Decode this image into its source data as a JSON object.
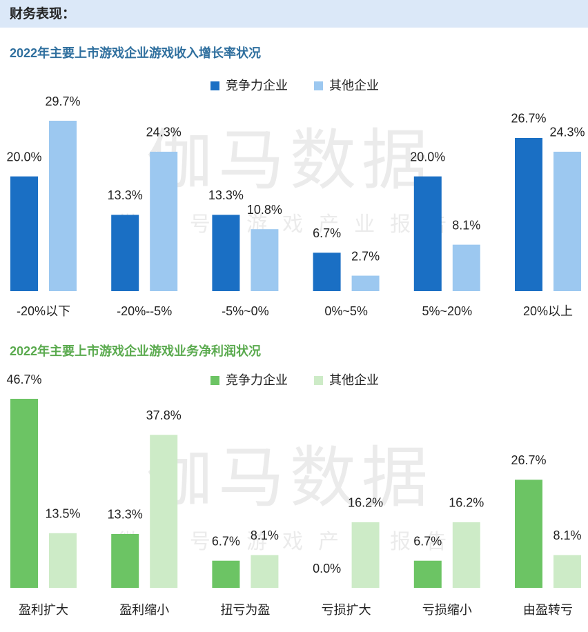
{
  "header": {
    "title": "财务表现："
  },
  "watermark": {
    "main": "伽马数据",
    "sub": "微信号 游戏产业报告"
  },
  "chart_data": [
    {
      "type": "bar",
      "title": "2022年主要上市游戏企业游戏收入增长率状况",
      "title_color": "#2f6f9e",
      "categories": [
        "-20%以下",
        "-20%--5%",
        "-5%~0%",
        "0%~5%",
        "5%~20%",
        "20%以上"
      ],
      "series": [
        {
          "name": "竞争力企业",
          "color": "#1a6fc4",
          "values": [
            20.0,
            13.3,
            13.3,
            6.7,
            20.0,
            26.7
          ],
          "value_labels": [
            "20.0%",
            "13.3%",
            "13.3%",
            "6.7%",
            "20.0%",
            "26.7%"
          ]
        },
        {
          "name": "其他企业",
          "color": "#9cc8f0",
          "values": [
            29.7,
            24.3,
            10.8,
            2.7,
            8.1,
            24.3
          ],
          "value_labels": [
            "29.7%",
            "24.3%",
            "10.8%",
            "2.7%",
            "8.1%",
            "24.3%"
          ]
        }
      ]
    },
    {
      "type": "bar",
      "title": "2022年主要上市游戏企业游戏业务净利润状况",
      "title_color": "#5aaa4e",
      "categories": [
        "盈利扩大",
        "盈利缩小",
        "扭亏为盈",
        "亏损扩大",
        "亏损缩小",
        "由盈转亏"
      ],
      "series": [
        {
          "name": "竞争力企业",
          "color": "#6cc464",
          "values": [
            46.7,
            13.3,
            6.7,
            0.0,
            6.7,
            26.7
          ],
          "value_labels": [
            "46.7%",
            "13.3%",
            "6.7%",
            "0.0%",
            "6.7%",
            "26.7%"
          ]
        },
        {
          "name": "其他企业",
          "color": "#cdebc7",
          "values": [
            13.5,
            37.8,
            8.1,
            16.2,
            16.2,
            8.1
          ],
          "value_labels": [
            "13.5%",
            "37.8%",
            "8.1%",
            "16.2%",
            "16.2%",
            "8.1%"
          ]
        }
      ]
    }
  ]
}
